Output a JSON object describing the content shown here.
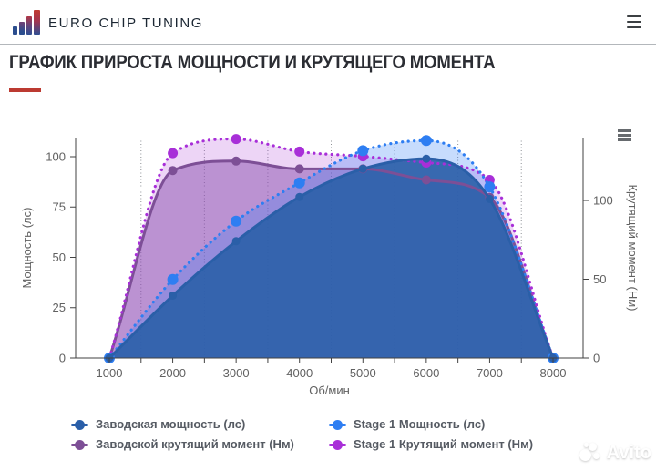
{
  "header": {
    "brand": "EURO CHIP TUNING",
    "menu_icon": "hamburger-icon"
  },
  "title": "ГРАФИК ПРИРОСТА МОЩНОСТИ И КРУТЯЩЕГО МОМЕНТА",
  "accent_color": "#bc3a31",
  "watermark": {
    "text": "Avito"
  },
  "chart_data": {
    "type": "area",
    "x": [
      1000,
      2000,
      3000,
      4000,
      5000,
      6000,
      7000,
      8000
    ],
    "xlabel": "Об/мин",
    "x_minor_gridlines": [
      1500,
      2500,
      3500,
      4500,
      5500,
      6500,
      7500
    ],
    "left_axis": {
      "label": "Мощность (лс)",
      "ticks": [
        0,
        25,
        50,
        75,
        100
      ],
      "range": [
        0,
        109.5
      ]
    },
    "right_axis": {
      "label": "Крутящий момент (Нм)",
      "ticks": [
        0,
        50,
        100
      ],
      "range": [
        0,
        139.9
      ]
    },
    "legend_position": "bottom",
    "grid": "dotted-vertical-minor",
    "series": [
      {
        "name": "Заводская мощность (лс)",
        "axis": "left",
        "line": "solid",
        "color": "#2a5fa8",
        "fill_color": "#2a5fa8",
        "fill_opacity": 0.9,
        "marker_radius": 4.5,
        "values": [
          0,
          31,
          58,
          80,
          94,
          99,
          79,
          0
        ]
      },
      {
        "name": "Stage 1 Мощность (лс)",
        "axis": "left",
        "line": "dotted",
        "color": "#2e7ef2",
        "fill_color": "#2f7df6",
        "fill_opacity": 0.27,
        "marker_radius": 6,
        "values": [
          0,
          39,
          68,
          87,
          103,
          108,
          85,
          0
        ]
      },
      {
        "name": "Заводской крутящий момент (Нм)",
        "axis": "right",
        "line": "solid",
        "color": "#7d4f96",
        "fill_color": "#8a4fae",
        "fill_opacity": 0.5,
        "marker_radius": 5,
        "values": [
          0,
          119,
          125,
          120,
          120,
          113,
          102,
          0
        ]
      },
      {
        "name": "Stage 1 Крутящий момент (Нм)",
        "axis": "right",
        "line": "dotted",
        "color": "#a82fd8",
        "fill_color": "#a32cd4",
        "fill_opacity": 0.2,
        "marker_radius": 5.5,
        "values": [
          0,
          130,
          139,
          131,
          128,
          124,
          113,
          0
        ]
      }
    ]
  }
}
